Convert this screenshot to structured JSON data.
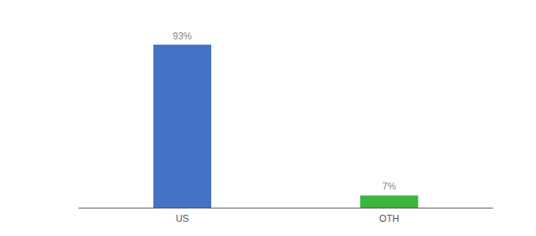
{
  "chart_data": {
    "type": "bar",
    "categories": [
      "US",
      "OTH"
    ],
    "values": [
      93,
      7
    ],
    "value_labels": [
      "93%",
      "7%"
    ],
    "colors": [
      "#4472c4",
      "#3cb540"
    ],
    "ylim": [
      0,
      105
    ],
    "grid": false,
    "data_labels": true,
    "tick_labels": "x"
  }
}
